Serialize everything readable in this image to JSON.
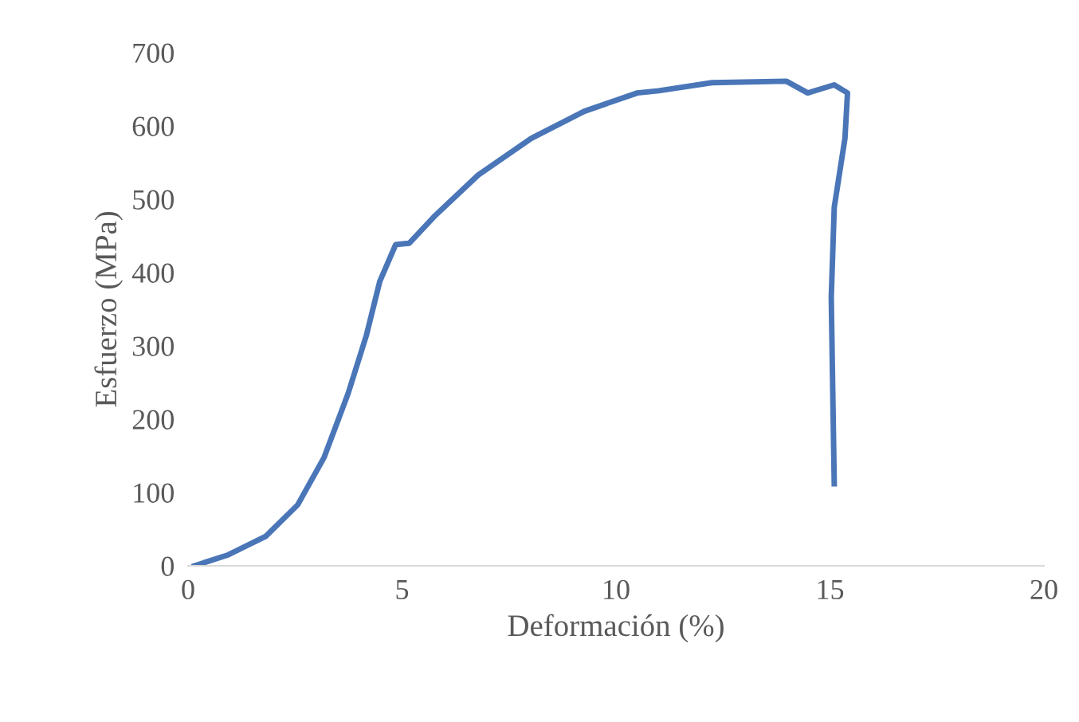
{
  "chart_data": {
    "type": "line",
    "xlabel": "Deformación (%)",
    "ylabel": "Esfuerzo (MPa)",
    "xlim": [
      0,
      20
    ],
    "ylim": [
      0,
      700
    ],
    "xticks": [
      0,
      5,
      10,
      15,
      20
    ],
    "yticks": [
      0,
      100,
      200,
      300,
      400,
      500,
      600,
      700
    ],
    "grid": false,
    "legend": false,
    "marker": "none",
    "line_style": "solid",
    "series": [
      {
        "color": "#4a76b8",
        "x": [
          0.15,
          0.94,
          1.81,
          2.56,
          3.18,
          3.74,
          4.17,
          4.48,
          4.85,
          5.17,
          5.78,
          6.78,
          8.02,
          9.26,
          10.5,
          11.0,
          12.24,
          13.98,
          14.48,
          15.1,
          15.41,
          15.35,
          15.1,
          15.03,
          15.1
        ],
        "values": [
          0,
          15,
          40,
          83,
          148,
          235,
          315,
          388,
          438,
          440,
          478,
          533,
          583,
          620,
          645,
          648,
          659,
          661,
          645,
          656,
          645,
          583,
          489,
          366,
          112
        ]
      }
    ]
  }
}
